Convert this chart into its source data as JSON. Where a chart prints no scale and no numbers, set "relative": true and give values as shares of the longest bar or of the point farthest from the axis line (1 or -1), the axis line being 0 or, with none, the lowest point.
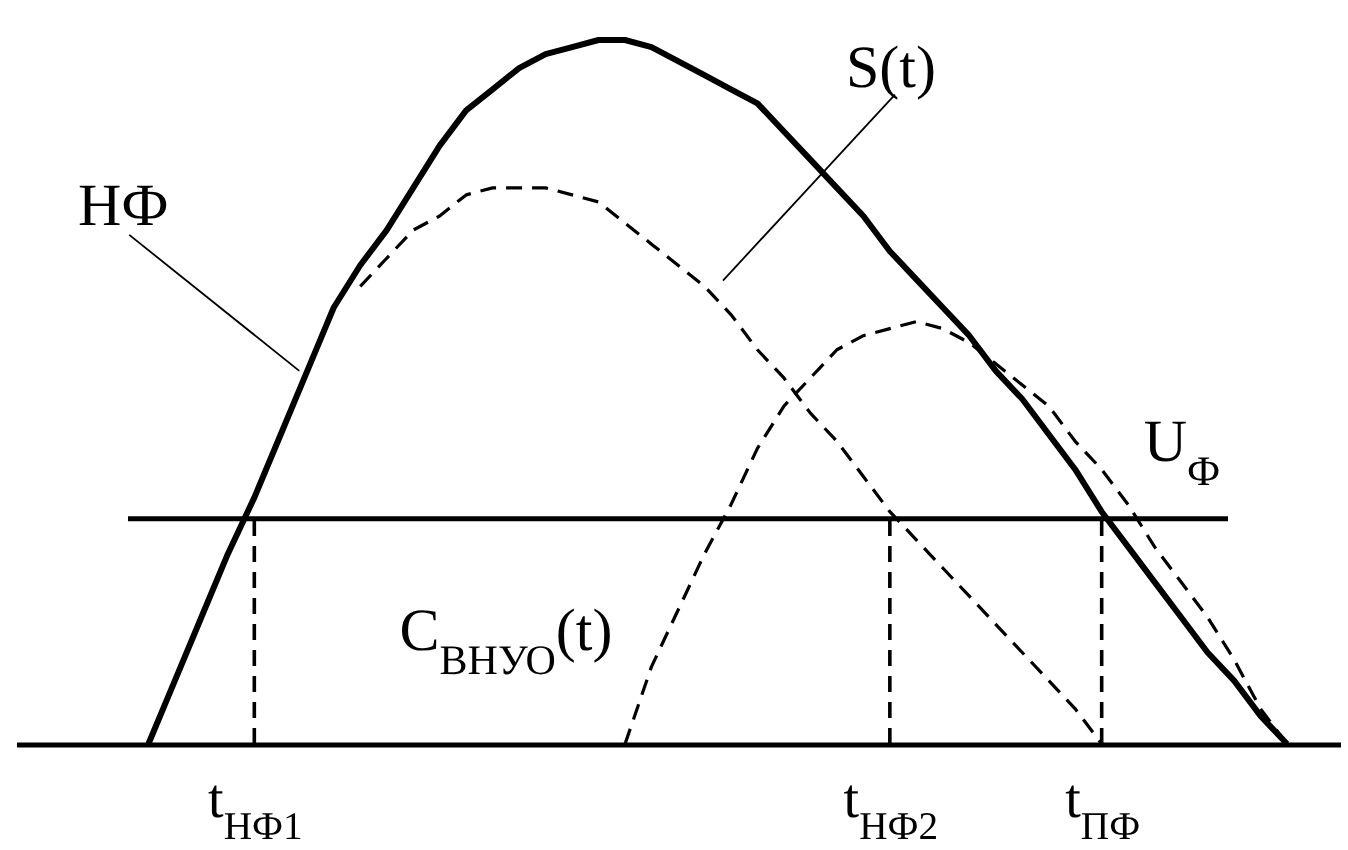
{
  "chart_data": {
    "type": "line",
    "relative": true,
    "categories": [
      null,
      null,
      null,
      null,
      null,
      null,
      null,
      null,
      null,
      "t$_{НФ1}$",
      null,
      null,
      null,
      null,
      null,
      null,
      null,
      null,
      null,
      null,
      null,
      null,
      null,
      null,
      null,
      null,
      null,
      null,
      null,
      null,
      null,
      null,
      null,
      "t$_{НФ2}$",
      null,
      null,
      null,
      null,
      null,
      null,
      null,
      "t$_{ПФ}$",
      null,
      null,
      null,
      null,
      null,
      null,
      null,
      null,
      null
    ],
    "series": [
      {
        "name": "НФ",
        "color": "#000000",
        "line_style": "solid",
        "values": [
          null,
          null,
          null,
          null,
          null,
          0,
          0.09,
          0.18,
          0.27,
          0.35,
          0.44,
          0.53,
          0.62,
          0.68,
          0.73,
          0.79,
          0.85,
          0.9,
          0.93,
          0.96,
          0.98,
          0.99,
          1,
          1,
          0.99,
          0.97,
          0.95,
          0.93,
          0.91,
          0.87,
          0.83,
          0.79,
          0.75,
          0.7,
          0.66,
          0.62,
          0.58,
          0.53,
          0.49,
          0.44,
          0.39,
          0.33,
          0.28,
          0.23,
          0.18,
          0.13,
          0.09,
          0.04,
          0,
          null,
          null
        ]
      },
      {
        "name": "S(t)",
        "color": "#000000",
        "line_style": "dashed",
        "values": [
          null,
          null,
          null,
          null,
          null,
          null,
          null,
          null,
          null,
          null,
          null,
          null,
          null,
          0.65,
          0.69,
          0.73,
          0.75,
          0.78,
          0.79,
          0.79,
          0.79,
          0.78,
          0.77,
          0.74,
          0.71,
          0.68,
          0.65,
          0.61,
          0.56,
          0.52,
          0.47,
          0.43,
          0.38,
          0.33,
          0.29,
          0.25,
          0.21,
          0.17,
          0.13,
          0.09,
          0.05,
          0,
          null,
          null,
          null,
          null,
          null,
          null,
          null,
          null,
          null
        ]
      },
      {
        "name": "C$_{ВНУО}$(t)",
        "color": "#000000",
        "line_style": "dashed",
        "values": [
          null,
          null,
          null,
          null,
          null,
          null,
          null,
          null,
          null,
          null,
          null,
          null,
          null,
          null,
          null,
          null,
          null,
          null,
          null,
          null,
          null,
          null,
          null,
          0,
          0.11,
          0.19,
          0.27,
          0.34,
          0.42,
          0.48,
          0.52,
          0.56,
          0.58,
          0.59,
          0.6,
          0.59,
          0.57,
          0.54,
          0.51,
          0.48,
          0.43,
          0.39,
          0.34,
          0.28,
          0.23,
          0.18,
          0.12,
          0.05,
          0,
          null,
          null
        ]
      }
    ],
    "ref_lines": [
      {
        "axis": "y",
        "value": 0.32,
        "label": "U$_{Ф}$",
        "color": "#000000"
      },
      {
        "axis": "x",
        "value": "t$_{НФ1}$",
        "color": "#000000",
        "line_style": "dashed"
      },
      {
        "axis": "x",
        "value": "t$_{НФ2}$",
        "color": "#000000",
        "line_style": "dashed"
      },
      {
        "axis": "x",
        "value": "t$_{ПФ}$",
        "color": "#000000",
        "line_style": "dashed"
      }
    ]
  }
}
